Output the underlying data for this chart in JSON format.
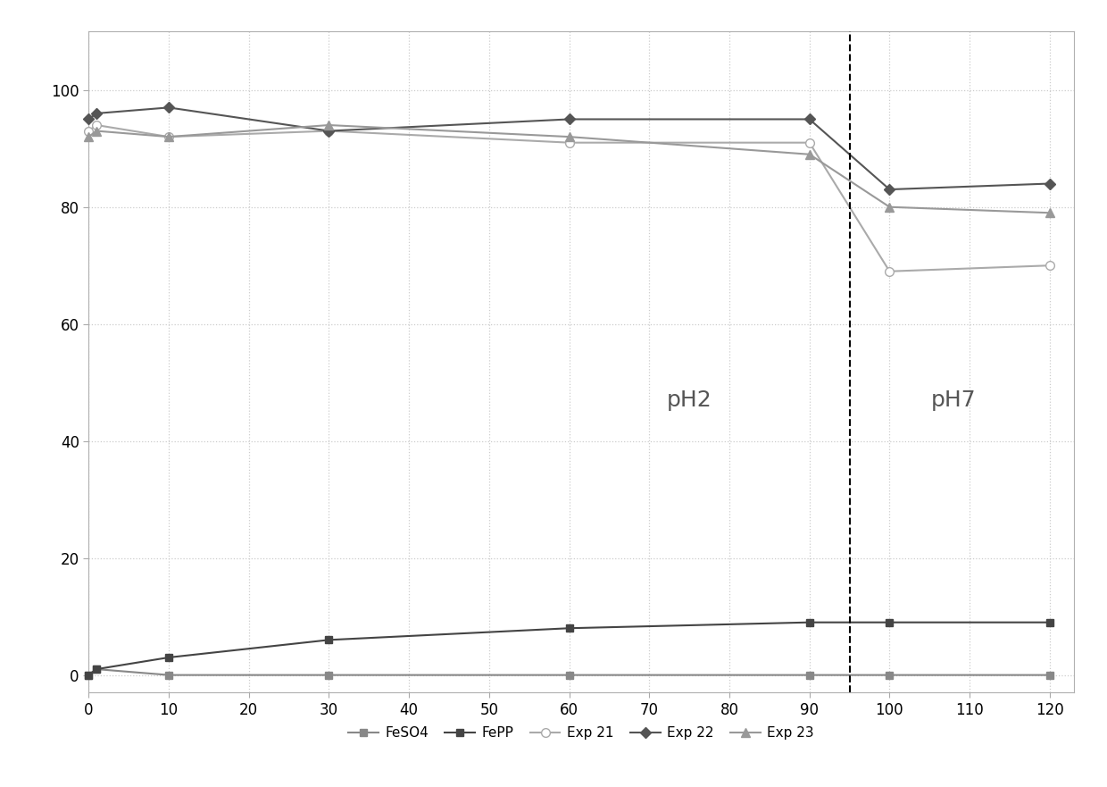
{
  "series": [
    {
      "key": "FeSO4",
      "x": [
        0,
        1,
        10,
        30,
        60,
        90,
        100,
        120
      ],
      "y": [
        0,
        1,
        0,
        0,
        0,
        0,
        0,
        0
      ],
      "color": "#888888",
      "marker": "s",
      "marker_size": 6,
      "linewidth": 1.5,
      "label": "FeSO4",
      "markerfacecolor": "#888888",
      "zorder": 3
    },
    {
      "key": "FePP",
      "x": [
        0,
        1,
        10,
        30,
        60,
        90,
        100,
        120
      ],
      "y": [
        0,
        1,
        3,
        6,
        8,
        9,
        9,
        9
      ],
      "color": "#444444",
      "marker": "s",
      "marker_size": 6,
      "linewidth": 1.5,
      "label": "FePP",
      "markerfacecolor": "#444444",
      "zorder": 3
    },
    {
      "key": "Exp21",
      "x": [
        0,
        1,
        10,
        30,
        60,
        90,
        100,
        120
      ],
      "y": [
        93,
        94,
        92,
        93,
        91,
        91,
        69,
        70
      ],
      "color": "#aaaaaa",
      "marker": "o",
      "marker_size": 7,
      "linewidth": 1.5,
      "label": "Exp 21",
      "markerfacecolor": "white",
      "zorder": 4
    },
    {
      "key": "Exp22",
      "x": [
        0,
        1,
        10,
        30,
        60,
        90,
        100,
        120
      ],
      "y": [
        95,
        96,
        97,
        93,
        95,
        95,
        83,
        84
      ],
      "color": "#555555",
      "marker": "D",
      "marker_size": 6,
      "linewidth": 1.5,
      "label": "Exp 22",
      "markerfacecolor": "#555555",
      "zorder": 4
    },
    {
      "key": "Exp23",
      "x": [
        0,
        1,
        10,
        30,
        60,
        90,
        100,
        120
      ],
      "y": [
        92,
        93,
        92,
        94,
        92,
        89,
        80,
        79
      ],
      "color": "#999999",
      "marker": "^",
      "marker_size": 7,
      "linewidth": 1.5,
      "label": "Exp 23",
      "markerfacecolor": "#999999",
      "zorder": 4
    }
  ],
  "vline_x": 95,
  "pH2_x": 75,
  "pH2_y": 47,
  "pH7_x": 108,
  "pH7_y": 47,
  "pH_fontsize": 18,
  "pH_color": "#555555",
  "xlim": [
    0,
    123
  ],
  "ylim": [
    -3,
    110
  ],
  "xticks": [
    0,
    10,
    20,
    30,
    40,
    50,
    60,
    70,
    80,
    90,
    100,
    110,
    120
  ],
  "yticks": [
    0,
    20,
    40,
    60,
    80,
    100
  ],
  "grid_color": "#cccccc",
  "background_color": "#ffffff",
  "font_size_ticks": 12,
  "legend_fontsize": 11
}
